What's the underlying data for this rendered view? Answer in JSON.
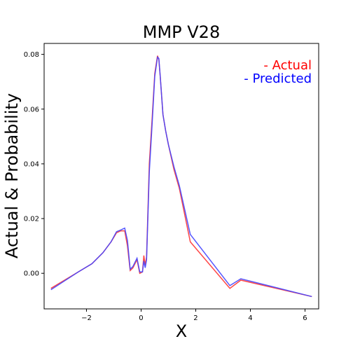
{
  "chart_data": {
    "type": "line",
    "title": "MMP V28",
    "xlabel": "X",
    "ylabel": "Actual & Probability",
    "xlim": [
      -3.55,
      6.5
    ],
    "ylim": [
      -0.013,
      0.084
    ],
    "xticks": [
      -2,
      0,
      2,
      4,
      6
    ],
    "yticks": [
      0.0,
      0.02,
      0.04,
      0.06,
      0.08
    ],
    "xtick_labels": [
      "−2",
      "0",
      "2",
      "4",
      "6"
    ],
    "ytick_labels": [
      "0.00",
      "0.02",
      "0.04",
      "0.06",
      "0.08"
    ],
    "grid": false,
    "legend_position": "top-right",
    "legend": [
      "- Actual",
      "- Predicted"
    ],
    "series": [
      {
        "name": "- Actual",
        "color": "#ff3333",
        "x": [
          -3.3,
          -2.3,
          -1.8,
          -1.4,
          -1.1,
          -0.9,
          -0.75,
          -0.6,
          -0.5,
          -0.4,
          -0.3,
          -0.15,
          -0.05,
          0.05,
          0.1,
          0.15,
          0.2,
          0.3,
          0.4,
          0.5,
          0.6,
          0.65,
          0.7,
          0.8,
          0.9,
          1.0,
          1.2,
          1.4,
          1.8,
          3.25,
          3.65,
          6.25
        ],
        "y": [
          -0.0055,
          0.0005,
          0.0035,
          0.0075,
          0.0115,
          0.0148,
          0.0155,
          0.0155,
          0.01,
          0.001,
          0.002,
          0.005,
          0.0,
          0.0005,
          0.0065,
          0.003,
          0.006,
          0.04,
          0.056,
          0.073,
          0.0795,
          0.078,
          0.072,
          0.058,
          0.052,
          0.047,
          0.038,
          0.031,
          0.0115,
          -0.0055,
          -0.0025,
          -0.0085
        ]
      },
      {
        "name": "- Predicted",
        "color": "#4444ff",
        "x": [
          -3.3,
          -2.3,
          -1.8,
          -1.4,
          -1.1,
          -0.9,
          -0.75,
          -0.6,
          -0.5,
          -0.4,
          -0.3,
          -0.15,
          -0.05,
          0.05,
          0.1,
          0.15,
          0.2,
          0.3,
          0.4,
          0.5,
          0.6,
          0.65,
          0.7,
          0.8,
          0.9,
          1.0,
          1.2,
          1.4,
          1.8,
          3.25,
          3.65,
          6.25
        ],
        "y": [
          -0.006,
          0.0005,
          0.0035,
          0.0075,
          0.0115,
          0.0152,
          0.0158,
          0.0165,
          0.012,
          0.0015,
          0.0025,
          0.0055,
          0.0005,
          0.0005,
          0.0045,
          0.002,
          0.005,
          0.037,
          0.054,
          0.072,
          0.079,
          0.0785,
          0.072,
          0.058,
          0.052,
          0.047,
          0.039,
          0.032,
          0.0142,
          -0.0045,
          -0.002,
          -0.0085
        ]
      }
    ]
  }
}
